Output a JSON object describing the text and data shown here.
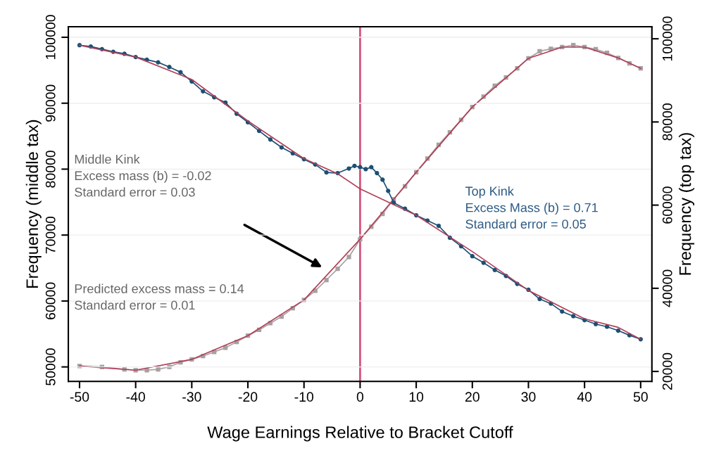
{
  "chart_data": {
    "type": "line",
    "xlabel": "Wage Earnings Relative to Bracket Cutoff",
    "ylabel": "Frequency (middle tax)",
    "y2label": "Frequency (top tax)",
    "xlim": [
      -52,
      52
    ],
    "xticks": [
      -50,
      -40,
      -30,
      -20,
      -10,
      0,
      10,
      20,
      30,
      40,
      50
    ],
    "ylim": [
      47800,
      101600
    ],
    "yticks": [
      50000,
      60000,
      70000,
      80000,
      90000,
      100000
    ],
    "y2lim": [
      17600,
      102900
    ],
    "y2ticks": [
      20000,
      40000,
      60000,
      80000,
      100000
    ],
    "grid": "y",
    "legend": false,
    "series": [
      {
        "marker": "circle",
        "color": "#1d4f73",
        "x": [
          -50,
          -48,
          -46,
          -44,
          -42,
          -40,
          -38,
          -36,
          -34,
          -32,
          -30,
          -28,
          -26,
          -24,
          -22,
          -20,
          -18,
          -16,
          -14,
          -12,
          -10,
          -8,
          -6,
          -4,
          -2,
          -1,
          0,
          1,
          2,
          3,
          4,
          5,
          6,
          8,
          10,
          12,
          14,
          16,
          18,
          20,
          22,
          24,
          26,
          28,
          30,
          32,
          34,
          36,
          38,
          40,
          42,
          44,
          46,
          48,
          50
        ],
        "values": [
          98800,
          98600,
          98200,
          97800,
          97500,
          97000,
          96600,
          96200,
          95500,
          94700,
          93300,
          91800,
          90900,
          90100,
          88400,
          87100,
          85800,
          84500,
          83300,
          82400,
          81500,
          80700,
          79500,
          79400,
          80100,
          80500,
          80300,
          80000,
          80300,
          79400,
          78400,
          76700,
          74900,
          74000,
          73000,
          72200,
          71400,
          69600,
          68300,
          66800,
          65800,
          64700,
          63800,
          62600,
          61700,
          60300,
          59600,
          58400,
          57700,
          57100,
          56500,
          56100,
          55500,
          54800,
          54200
        ]
      },
      {
        "marker": "none",
        "color": "#b0405a",
        "x": [
          -50,
          -40,
          -30,
          -20,
          -10,
          -4,
          0,
          5,
          10,
          20,
          30,
          40,
          46,
          50
        ],
        "values": [
          98800,
          97000,
          93600,
          87300,
          81600,
          79300,
          77000,
          75000,
          73000,
          67500,
          61600,
          57300,
          56000,
          54200
        ]
      },
      {
        "marker": "square",
        "color": "#a8a0a0",
        "axis": "y2",
        "x": [
          -50,
          -46,
          -42,
          -40,
          -38,
          -36,
          -34,
          -32,
          -30,
          -28,
          -26,
          -24,
          -22,
          -20,
          -18,
          -16,
          -14,
          -12,
          -10,
          -8,
          -6,
          -4,
          -2,
          0,
          2,
          4,
          6,
          8,
          10,
          12,
          14,
          16,
          18,
          20,
          22,
          24,
          26,
          28,
          30,
          32,
          34,
          36,
          38,
          40,
          42,
          44,
          46,
          48,
          50
        ],
        "values": [
          21300,
          21100,
          20500,
          20300,
          20300,
          20500,
          21100,
          22200,
          22900,
          23700,
          24700,
          25700,
          27100,
          28600,
          30000,
          31600,
          33200,
          35200,
          37200,
          39400,
          42000,
          44700,
          47500,
          51800,
          54800,
          57900,
          61400,
          64500,
          67900,
          71200,
          74500,
          77500,
          80500,
          83600,
          86100,
          88700,
          90700,
          92900,
          95300,
          97000,
          97600,
          98000,
          98500,
          98000,
          97500,
          96600,
          95400,
          94100,
          92900
        ]
      },
      {
        "marker": "none",
        "color": "#b0405a",
        "axis": "y2",
        "x": [
          -50,
          -40,
          -30,
          -20,
          -10,
          0,
          10,
          20,
          30,
          36,
          40,
          46,
          50
        ],
        "values": [
          21300,
          20300,
          22900,
          28600,
          37200,
          51800,
          67900,
          83600,
          95300,
          98000,
          98000,
          95400,
          92900
        ]
      }
    ],
    "ref_lines": [
      {
        "axis": "x",
        "value": 0,
        "color": "#d6537a",
        "line_style": "solid"
      }
    ],
    "annotations": [
      "Middle Kink\nExcess mass (b) = -0.02\nStandard error = 0.03",
      "Predicted excess mass = 0.14\nStandard error = 0.01",
      "Top Kink\nExcess Mass (b) = 0.71\nStandard error = 0.05"
    ]
  }
}
